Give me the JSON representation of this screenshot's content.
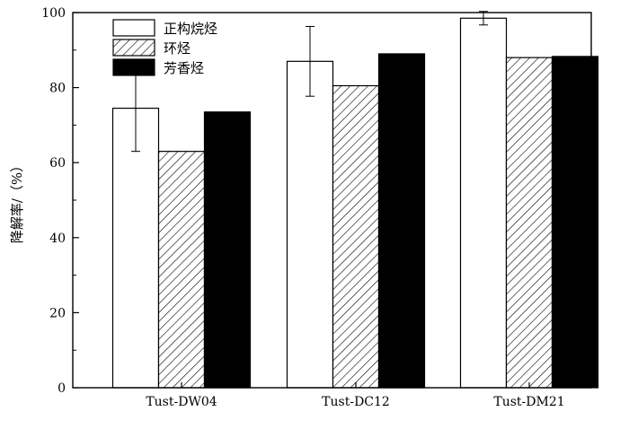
{
  "chart_data": {
    "type": "bar",
    "categories": [
      "Tust-DW04",
      "Tust-DC12",
      "Tust-DM21"
    ],
    "series": [
      {
        "name": "正构烷烃",
        "values": [
          74.5,
          87.0,
          98.5
        ],
        "errors": [
          11.5,
          9.3,
          1.8
        ],
        "fill": "white"
      },
      {
        "name": "环烃",
        "values": [
          63.0,
          80.5,
          88.0
        ],
        "errors": [
          0.2,
          0,
          0
        ],
        "fill": "hatch"
      },
      {
        "name": "芳香烃",
        "values": [
          73.5,
          89.0,
          88.3
        ],
        "errors": [
          0,
          0,
          0
        ],
        "fill": "black"
      }
    ],
    "ylabel": "降解率/（%）",
    "xlabel": "",
    "ylim": [
      0,
      100
    ],
    "yticks": [
      0,
      20,
      40,
      60,
      80,
      100
    ],
    "grid": false,
    "legend_position": "top-left",
    "colors": {
      "outline": "#000000",
      "hatch": "#000000",
      "solid": "#000000",
      "open": "#ffffff"
    }
  }
}
